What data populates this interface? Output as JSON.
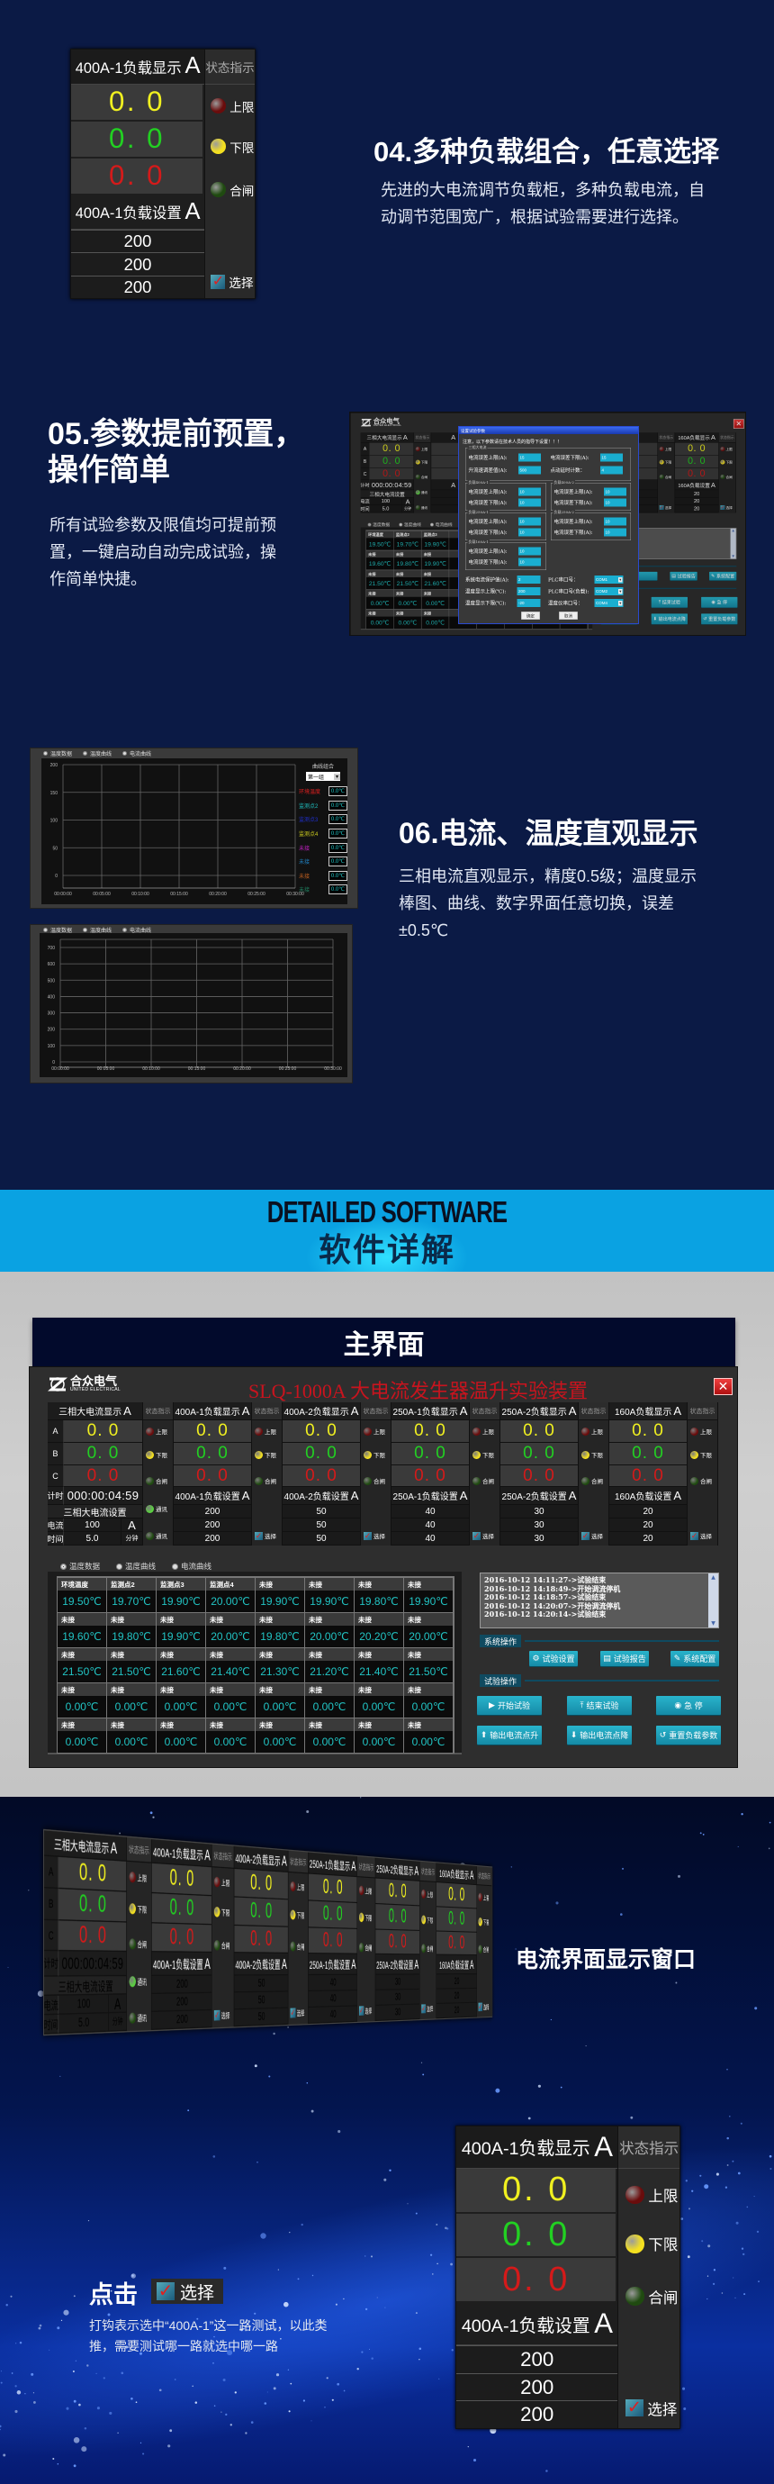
{
  "colors": {
    "navy": "#0b1a45",
    "banner": "#0aa2e2",
    "yellow": "#f0f020",
    "green": "#22d022",
    "red": "#d41a1a",
    "upper_light": "#6a0c0c",
    "lower_light": "#f4e020",
    "close_light": "#1f4a10",
    "comm_on": "#5ad040",
    "comm_off": "#1f4a10",
    "cyan_value": "#22c4c4",
    "title_red": "#c8141e"
  },
  "section04": {
    "title": "04.多种负载组合，任意选择",
    "desc": "先进的大电流调节负载柜，多种负载电流，自动调节范围宽广，根据试验需要进行选择。"
  },
  "load_panel": {
    "display_title": "400A-1负载显示",
    "unit": "A",
    "status_title": "状态指示",
    "values": [
      "0. 0",
      "0. 0",
      "0. 0"
    ],
    "set_title": "400A-1负载设置",
    "set_values": [
      "200",
      "200",
      "200"
    ],
    "lights": {
      "upper": "上限",
      "lower": "下限",
      "close": "合闸"
    },
    "select_label": "选择",
    "selected": true
  },
  "section05": {
    "title_line1": "05.参数提前预置，",
    "title_line2": "操作简单",
    "desc": "所有试验参数及限值均可提前预置，一键启动自动完成试验，操作简单快捷。"
  },
  "dialog": {
    "title": "设置试验参数",
    "notice": "注意，以下参数请在技术人员的指导下设置！！！",
    "groups": [
      {
        "name": "三相大电流",
        "fields": [
          {
            "label": "电流误差上限(A):",
            "value": "15"
          },
          {
            "label": "电流误差下限(A):",
            "value": "15"
          },
          {
            "label": "升流速调差值(A):",
            "value": "500"
          },
          {
            "label": "点动延时计数：",
            "value": "4"
          }
        ]
      },
      {
        "name": "负载400A-1",
        "fields": [
          {
            "label": "电流误差上限(A):",
            "value": "10"
          },
          {
            "label": "电流误差下限(A):",
            "value": "10"
          }
        ]
      },
      {
        "name": "负载400A-2",
        "fields": [
          {
            "label": "电流误差上限(A):",
            "value": "10"
          },
          {
            "label": "电流误差下限(A):",
            "value": "10"
          }
        ]
      },
      {
        "name": "负载250A-1",
        "fields": [
          {
            "label": "电流误差上限(A):",
            "value": "10"
          },
          {
            "label": "电流误差下限(A):",
            "value": "10"
          }
        ]
      },
      {
        "name": "负载250A-2",
        "fields": [
          {
            "label": "电流误差上限(A):",
            "value": "10"
          },
          {
            "label": "电流误差下限(A):",
            "value": "10"
          }
        ]
      },
      {
        "name": "负载160A-1",
        "fields": [
          {
            "label": "电流误差上限(A):",
            "value": "10"
          },
          {
            "label": "电流误差下限(A):",
            "value": "10"
          }
        ]
      }
    ],
    "settings": [
      {
        "label": "系统电流保护值(A):",
        "value": "2"
      },
      {
        "label": "PLC串口号：",
        "value": "COM1"
      },
      {
        "label": "温度显示上限(℃):",
        "value": "200"
      },
      {
        "label": "PLC串口号(负载):",
        "value": "COM2"
      },
      {
        "label": "温度显示下限(℃):",
        "value": "-20"
      },
      {
        "label": "温度仪串口号：",
        "value": "COM4"
      }
    ],
    "ok": "确定",
    "cancel": "取消"
  },
  "section06": {
    "title": "06.电流、温度直观显示",
    "desc": "三相电流直观显示，精度0.5级；温度显示棒图、曲线、数字界面任意切换，误差±0.5℃",
    "charts": [
      {
        "type": "line",
        "radios": [
          "温度数据",
          "温度曲线",
          "电流曲线"
        ],
        "selected": 1,
        "yticks": [
          200,
          150,
          100,
          50,
          0
        ],
        "ylim": [
          0,
          200
        ],
        "xticks": [
          "00:00:00",
          "00:05:00",
          "00:10:00",
          "00:15:00",
          "00:20:00",
          "00:25:00",
          "00:30:00"
        ],
        "grid": true,
        "series": [],
        "legend_title": "曲线组合",
        "group_select": "第一组",
        "legend": [
          {
            "name": "环境温度",
            "color": "#e02020",
            "value": "0.0℃"
          },
          {
            "name": "监测点2",
            "color": "#20c0c0",
            "value": "0.0℃"
          },
          {
            "name": "监测点3",
            "color": "#2030d0",
            "value": "0.0℃"
          },
          {
            "name": "监测点4",
            "color": "#d0d020",
            "value": "0.0℃"
          },
          {
            "name": "未接",
            "color": "#c020c0",
            "value": "0.0℃"
          },
          {
            "name": "未接",
            "color": "#2080c0",
            "value": "0.0℃"
          },
          {
            "name": "未接",
            "color": "#c06020",
            "value": "0.0℃"
          },
          {
            "name": "未接",
            "color": "#208060",
            "value": "0.0℃"
          }
        ]
      },
      {
        "type": "line",
        "radios": [
          "温度数据",
          "温度曲线",
          "电流曲线"
        ],
        "selected": 2,
        "yticks": [
          700,
          600,
          500,
          400,
          300,
          200,
          100,
          0
        ],
        "ylim": [
          0,
          700
        ],
        "xticks": [
          "00:00:00",
          "00:05:00",
          "00:10:00",
          "00:15:00",
          "00:20:00",
          "00:25:00",
          "00:30:00"
        ],
        "grid": true,
        "series": []
      }
    ]
  },
  "banner": {
    "en": "DETAILED SOFTWARE",
    "cn": "软件详解"
  },
  "main_title": "主界面",
  "app": {
    "brand": "合众电气",
    "brand_en": "UNITED ELECTRICAL",
    "title": "SLQ-1000A 大电流发生器温升实验装置",
    "unit": "A",
    "status_title": "状态指示",
    "lights": {
      "upper": "上限",
      "lower": "下限",
      "close": "合闸",
      "comm": "通讯",
      "select": "选择"
    },
    "three_phase": {
      "title": "三相大电流显示",
      "phases": {
        "A": "A",
        "B": "B",
        "C": "C"
      },
      "values": [
        "0. 0",
        "0. 0",
        "0. 0"
      ],
      "timer_label": "计时",
      "timer": "000:00:04:59",
      "set_title": "三相大电流设置",
      "current_label": "电流",
      "current": "100",
      "time_label": "时间",
      "time": "5.0",
      "time_unit": "分钟"
    },
    "loads": [
      {
        "title": "400A-1负载显示",
        "values": [
          "0. 0",
          "0. 0",
          "0. 0"
        ],
        "set_title": "400A-1负载设置",
        "set_values": [
          "200",
          "200",
          "200"
        ]
      },
      {
        "title": "400A-2负载显示",
        "values": [
          "0. 0",
          "0. 0",
          "0. 0"
        ],
        "set_title": "400A-2负载设置",
        "set_values": [
          "50",
          "50",
          "50"
        ]
      },
      {
        "title": "250A-1负载显示",
        "values": [
          "0. 0",
          "0. 0",
          "0. 0"
        ],
        "set_title": "250A-1负载设置",
        "set_values": [
          "40",
          "40",
          "40"
        ]
      },
      {
        "title": "250A-2负载显示",
        "values": [
          "0. 0",
          "0. 0",
          "0. 0"
        ],
        "set_title": "250A-2负载设置",
        "set_values": [
          "30",
          "30",
          "30"
        ]
      },
      {
        "title": "160A负载显示",
        "values": [
          "0. 0",
          "0. 0",
          "0. 0"
        ],
        "set_title": "160A负载设置",
        "set_values": [
          "20",
          "20",
          "20"
        ]
      }
    ],
    "radios": [
      "温度数据",
      "温度曲线",
      "电流曲线"
    ],
    "radio_selected": 0,
    "temps": [
      [
        {
          "l": "环境温度",
          "v": "19.50℃"
        },
        {
          "l": "监测点2",
          "v": "19.70℃"
        },
        {
          "l": "监测点3",
          "v": "19.90℃"
        },
        {
          "l": "监测点4",
          "v": "20.00℃"
        },
        {
          "l": "未接",
          "v": "19.90℃"
        },
        {
          "l": "未接",
          "v": "19.90℃"
        },
        {
          "l": "未接",
          "v": "19.80℃"
        },
        {
          "l": "未接",
          "v": "19.90℃"
        }
      ],
      [
        {
          "l": "未接",
          "v": "19.60℃"
        },
        {
          "l": "未接",
          "v": "19.80℃"
        },
        {
          "l": "未接",
          "v": "19.90℃"
        },
        {
          "l": "未接",
          "v": "20.00℃"
        },
        {
          "l": "未接",
          "v": "19.80℃"
        },
        {
          "l": "未接",
          "v": "20.00℃"
        },
        {
          "l": "未接",
          "v": "20.20℃"
        },
        {
          "l": "未接",
          "v": "20.00℃"
        }
      ],
      [
        {
          "l": "未接",
          "v": "21.50℃"
        },
        {
          "l": "未接",
          "v": "21.50℃"
        },
        {
          "l": "未接",
          "v": "21.60℃"
        },
        {
          "l": "未接",
          "v": "21.40℃"
        },
        {
          "l": "未接",
          "v": "21.30℃"
        },
        {
          "l": "未接",
          "v": "21.20℃"
        },
        {
          "l": "未接",
          "v": "21.40℃"
        },
        {
          "l": "未接",
          "v": "21.50℃"
        }
      ],
      [
        {
          "l": "未接",
          "v": "0.00℃"
        },
        {
          "l": "未接",
          "v": "0.00℃"
        },
        {
          "l": "未接",
          "v": "0.00℃"
        },
        {
          "l": "未接",
          "v": "0.00℃"
        },
        {
          "l": "未接",
          "v": "0.00℃"
        },
        {
          "l": "未接",
          "v": "0.00℃"
        },
        {
          "l": "未接",
          "v": "0.00℃"
        },
        {
          "l": "未接",
          "v": "0.00℃"
        }
      ],
      [
        {
          "l": "未接",
          "v": "0.00℃"
        },
        {
          "l": "未接",
          "v": "0.00℃"
        },
        {
          "l": "未接",
          "v": "0.00℃"
        },
        {
          "l": "未接",
          "v": "0.00℃"
        },
        {
          "l": "未接",
          "v": "0.00℃"
        },
        {
          "l": "未接",
          "v": "0.00℃"
        },
        {
          "l": "未接",
          "v": "0.00℃"
        },
        {
          "l": "未接",
          "v": "0.00℃"
        }
      ]
    ],
    "log": [
      "2016-10-12 14:11:27->试验结束",
      "2016-10-12 14:18:49->开始调流停机",
      "2016-10-12 14:18:57->试验结束",
      "2016-10-12 14:20:07->开始调流停机",
      "2016-10-12 14:20:14->试验结束"
    ],
    "sys_ops_label": "系统操作",
    "sys_buttons": [
      {
        "label": "试验设置",
        "icon": "gear-icon",
        "glyph": "⚙"
      },
      {
        "label": "试验报告",
        "icon": "report-icon",
        "glyph": "▤"
      },
      {
        "label": "系统配置",
        "icon": "wrench-icon",
        "glyph": "✎"
      }
    ],
    "test_ops_label": "试验操作",
    "test_buttons": [
      {
        "label": "开始试验",
        "icon": "play-icon",
        "glyph": "▶"
      },
      {
        "label": "结束试验",
        "icon": "stop-upload-icon",
        "glyph": "⤒"
      },
      {
        "label": "急  停",
        "icon": "emergency-stop-icon",
        "glyph": "◉"
      },
      {
        "label": "输出电流点升",
        "icon": "arrow-up-icon",
        "glyph": "⬆"
      },
      {
        "label": "输出电流点降",
        "icon": "arrow-down-icon",
        "glyph": "⬇"
      },
      {
        "label": "重置负载参数",
        "icon": "reset-icon",
        "glyph": "↺"
      }
    ]
  },
  "current_window_label": "电流界面显示窗口",
  "click_hint": {
    "prefix": "点击",
    "select": "选择",
    "desc": "打钩表示选中“400A-1”这一路测试，以此类推，需要测试哪一路就选中哪一路"
  }
}
